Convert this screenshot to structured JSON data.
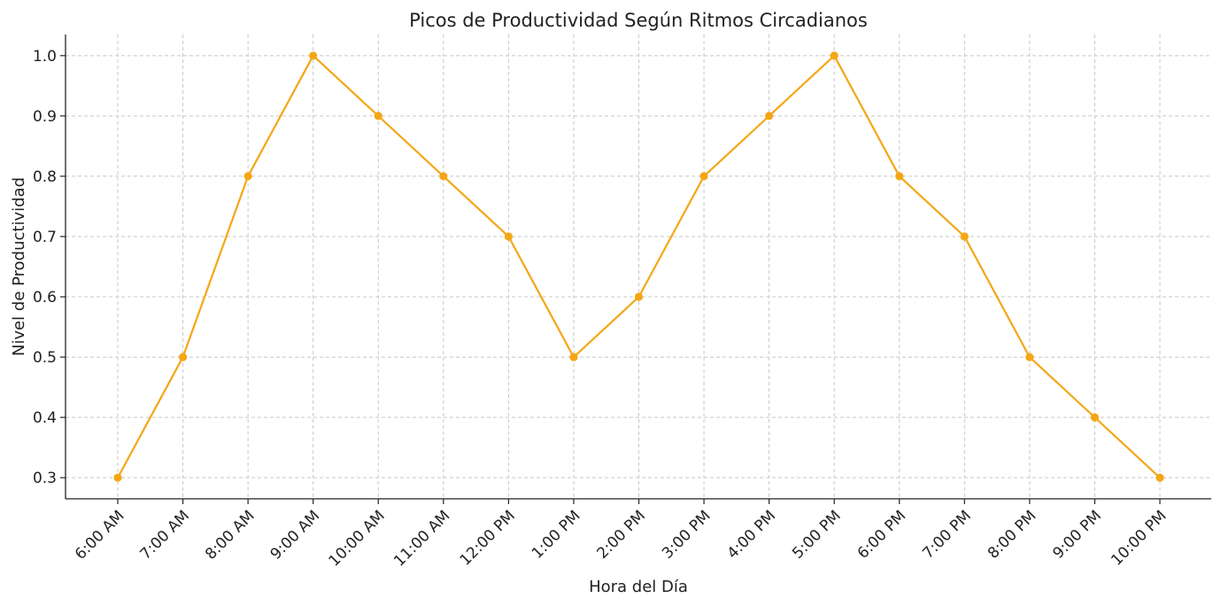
{
  "chart_data": {
    "type": "line",
    "title": "Picos de Productividad Según Ritmos Circadianos",
    "xlabel": "Hora del Día",
    "ylabel": "Nivel de Productividad",
    "categories": [
      "6:00 AM",
      "7:00 AM",
      "8:00 AM",
      "9:00 AM",
      "10:00 AM",
      "11:00 AM",
      "12:00 PM",
      "1:00 PM",
      "2:00 PM",
      "3:00 PM",
      "4:00 PM",
      "5:00 PM",
      "6:00 PM",
      "7:00 PM",
      "8:00 PM",
      "9:00 PM",
      "10:00 PM"
    ],
    "series": [
      {
        "values": [
          0.3,
          0.5,
          0.8,
          1.0,
          0.9,
          0.8,
          0.7,
          0.5,
          0.6,
          0.8,
          0.9,
          1.0,
          0.8,
          0.7,
          0.5,
          0.4,
          0.3
        ],
        "color": "#F5A614"
      }
    ],
    "ylim": [
      0.265,
      1.035
    ],
    "yticks": [
      "0.3",
      "0.4",
      "0.5",
      "0.6",
      "0.7",
      "0.8",
      "0.9",
      "1.0"
    ],
    "grid": true,
    "legend": "none"
  }
}
